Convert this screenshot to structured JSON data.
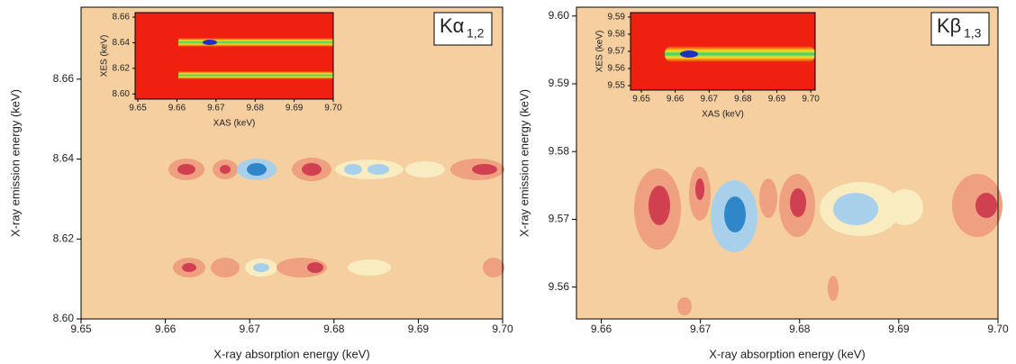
{
  "chart_data": [
    {
      "type": "contour",
      "label": {
        "main": "Kα",
        "sub": "1,2"
      },
      "xlabel": "X-ray absorption energy (keV)",
      "ylabel": "X-ray emission energy (keV)",
      "xlim": [
        9.65,
        9.7
      ],
      "xticks": [
        9.65,
        9.66,
        9.67,
        9.68,
        9.69,
        {
          "value": 9.7,
          "label": "9.70"
        }
      ],
      "ylim": [
        8.6,
        8.678
      ],
      "yticks": [
        {
          "value": 8.6,
          "label": "8.60"
        },
        8.62,
        8.64,
        8.66
      ],
      "inset": {
        "xlabel": "XAS (keV)",
        "ylabel": "XES (keV)",
        "xlim": [
          9.6493,
          9.7
        ],
        "xticks": [
          9.65,
          9.66,
          9.67,
          9.68,
          9.69,
          {
            "value": 9.7,
            "label": "9.70"
          }
        ],
        "ylim": [
          8.596,
          8.6635
        ],
        "yticks": [
          {
            "value": 8.6,
            "label": "8.60"
          },
          8.62,
          8.64,
          8.66
        ]
      }
    },
    {
      "type": "contour",
      "label": {
        "main": "Kβ",
        "sub": "1,3"
      },
      "xlabel": "X-ray absorption energy (keV)",
      "ylabel": "X-ray emission energy (keV)",
      "xlim": [
        9.6575,
        9.7
      ],
      "xticks": [
        9.66,
        9.67,
        9.68,
        9.69,
        {
          "value": 9.7,
          "label": "9.70"
        }
      ],
      "ylim": [
        9.5553,
        9.6013
      ],
      "yticks": [
        9.56,
        9.57,
        9.58,
        9.59,
        {
          "value": 9.6,
          "label": "9.60"
        }
      ],
      "inset": {
        "xlabel": "XAS (keV)",
        "ylabel": "XES (keV)",
        "xlim": [
          9.6468,
          9.7013
        ],
        "xticks": [
          9.65,
          9.66,
          9.67,
          9.68,
          9.69,
          {
            "value": 9.7,
            "label": "9.70"
          }
        ],
        "ylim": [
          9.5474,
          9.5926
        ],
        "yticks": [
          9.55,
          9.56,
          9.57,
          9.58,
          9.59
        ]
      }
    }
  ]
}
